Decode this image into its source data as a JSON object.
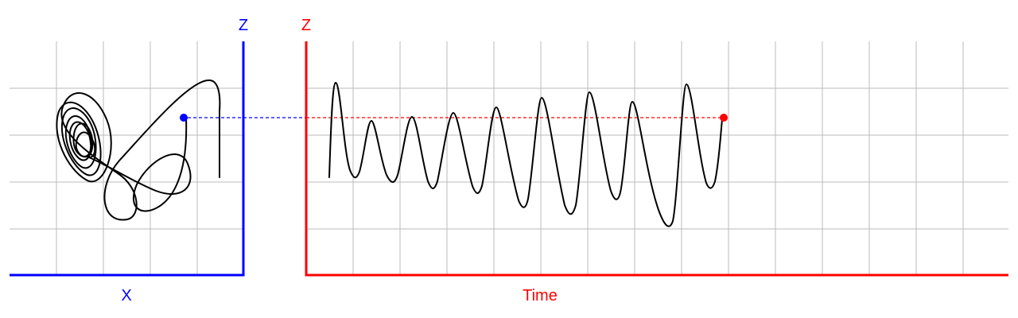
{
  "left_panel": {
    "x_label": "X",
    "z_label": "Z",
    "axis_color": "#0000ff",
    "point_color": "#0000ff"
  },
  "right_panel": {
    "x_label": "Time",
    "z_label": "Z",
    "axis_color": "#ff0000",
    "point_color": "#ff0000"
  },
  "connector": {
    "left_color": "#0000ff",
    "right_color": "#ff0000"
  },
  "grid_color": "#bbbbbb",
  "curve_color": "#000000"
}
